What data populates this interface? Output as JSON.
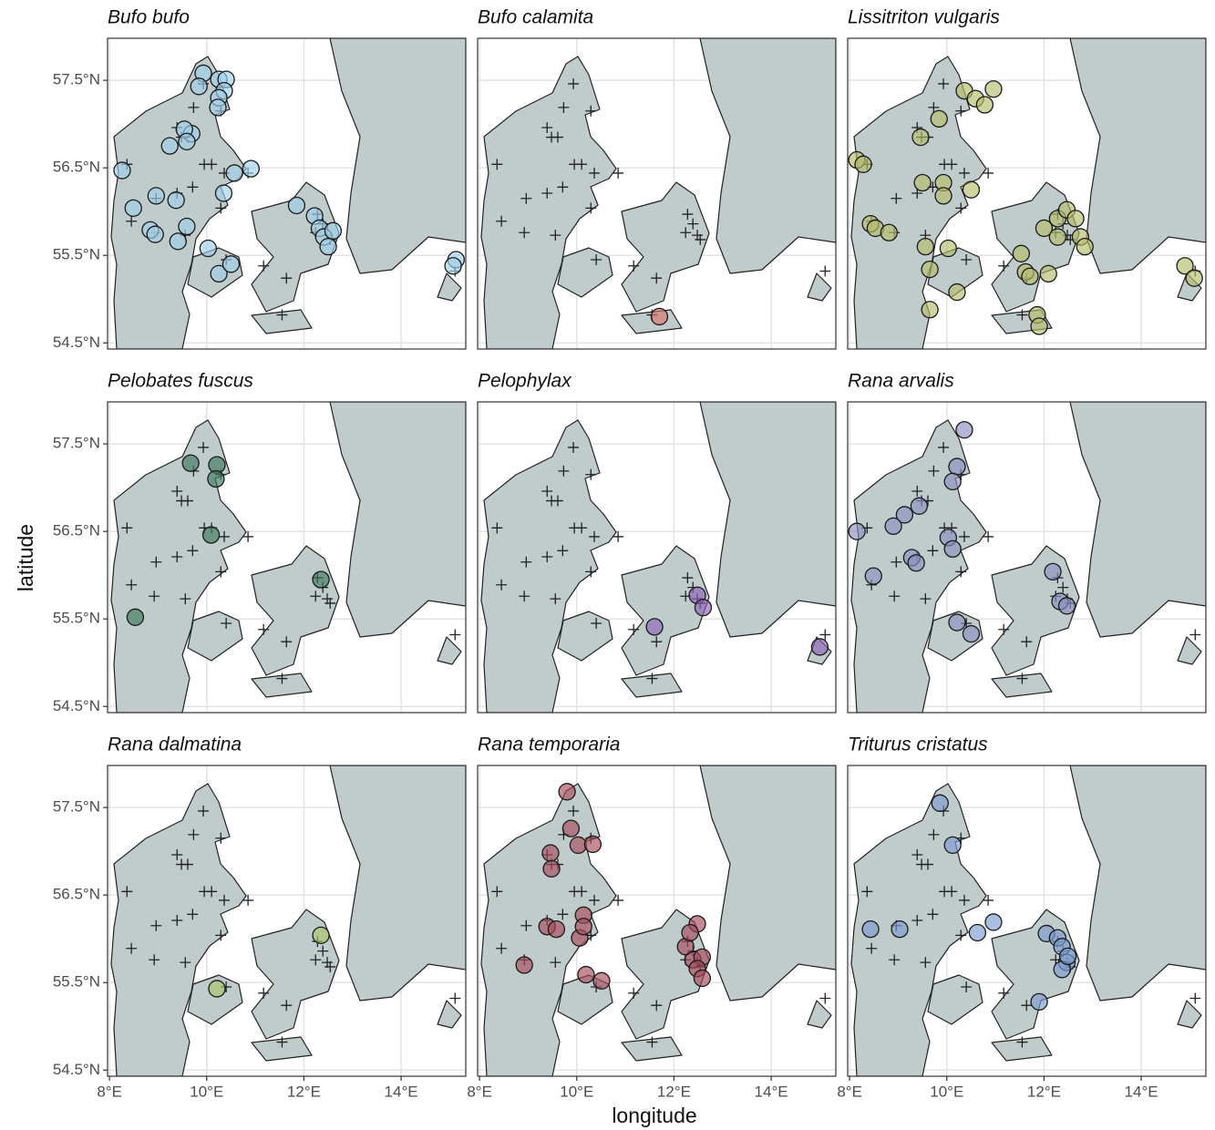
{
  "chart_data": {
    "type": "scatter",
    "xlabel": "longitude",
    "ylabel": "latitude",
    "xlim": [
      7.96,
      15.33
    ],
    "ylim": [
      54.43,
      57.98
    ],
    "xticks": [
      {
        "value": 8,
        "label": "8°E"
      },
      {
        "value": 10,
        "label": "10°E"
      },
      {
        "value": 12,
        "label": "12°E"
      },
      {
        "value": 14,
        "label": "14°E"
      }
    ],
    "yticks": [
      {
        "value": 54.5,
        "label": "54.5°N"
      },
      {
        "value": 55.5,
        "label": "55.5°N"
      },
      {
        "value": 56.5,
        "label": "56.5°N"
      },
      {
        "value": 57.5,
        "label": "57.5°N"
      }
    ],
    "grid": true,
    "sites": {
      "x": [
        9.93,
        10.29,
        9.73,
        9.39,
        9.48,
        9.61,
        8.36,
        8.96,
        9.39,
        9.71,
        10.1,
        10.36,
        10.29,
        10.4,
        10.85,
        11.17,
        11.64,
        11.55,
        12.28,
        12.39,
        12.48,
        12.54,
        12.24,
        8.45,
        8.92,
        9.56,
        15.11,
        9.95
      ],
      "values": [
        57.46,
        57.15,
        57.19,
        56.96,
        56.85,
        56.85,
        56.54,
        56.15,
        56.21,
        56.28,
        56.54,
        56.44,
        56.04,
        55.45,
        56.44,
        55.38,
        55.24,
        54.82,
        55.97,
        55.86,
        55.73,
        55.68,
        55.76,
        55.89,
        55.76,
        55.73,
        55.32,
        56.54
      ]
    },
    "panels": [
      {
        "title": "Bufo bufo",
        "color": "#9fd0ea",
        "x": [
          9.93,
          9.84,
          10.25,
          10.4,
          10.36,
          10.25,
          10.23,
          9.69,
          9.54,
          9.59,
          9.24,
          8.26,
          8.49,
          8.96,
          9.37,
          8.84,
          8.94,
          9.41,
          9.59,
          10.03,
          10.25,
          10.5,
          10.35,
          10.57,
          10.91,
          11.85,
          12.22,
          12.32,
          12.41,
          12.5,
          12.6,
          15.13,
          15.07
        ],
        "values": [
          57.58,
          57.43,
          57.51,
          57.51,
          57.38,
          57.3,
          57.19,
          56.89,
          56.94,
          56.8,
          56.75,
          56.47,
          56.04,
          56.18,
          56.13,
          55.79,
          55.74,
          55.66,
          55.83,
          55.58,
          55.29,
          55.4,
          56.21,
          56.44,
          56.49,
          56.07,
          55.95,
          55.81,
          55.71,
          55.6,
          55.78,
          55.45,
          55.38
        ]
      },
      {
        "title": "Bufo calamita",
        "color": "#d9776f",
        "x": [
          11.7
        ],
        "values": [
          54.8
        ]
      },
      {
        "title": "Lissitriton vulgaris",
        "color": "#b5bd6a",
        "x": [
          8.15,
          8.28,
          10.36,
          10.59,
          10.78,
          10.96,
          9.84,
          9.46,
          9.5,
          9.93,
          9.93,
          10.5,
          8.43,
          8.53,
          8.81,
          9.56,
          10.03,
          9.65,
          10.21,
          9.65,
          11.53,
          11.62,
          11.71,
          11.86,
          11.9,
          12.0,
          12.28,
          12.47,
          12.65,
          12.28,
          12.75,
          12.09,
          14.9,
          15.09,
          12.84
        ],
        "values": [
          56.59,
          56.54,
          57.38,
          57.29,
          57.22,
          57.4,
          57.06,
          56.85,
          56.33,
          56.33,
          56.18,
          56.25,
          55.86,
          55.81,
          55.76,
          55.6,
          55.58,
          55.34,
          55.08,
          54.88,
          55.52,
          55.31,
          55.26,
          54.82,
          54.69,
          55.81,
          55.92,
          56.02,
          55.92,
          55.71,
          55.71,
          55.29,
          55.38,
          55.24,
          55.6
        ]
      },
      {
        "title": "Pelobates fuscus",
        "color": "#3d7a5e",
        "x": [
          9.67,
          10.21,
          10.19,
          10.09,
          8.53,
          12.35
        ],
        "values": [
          57.28,
          57.26,
          57.1,
          56.46,
          55.52,
          55.95
        ]
      },
      {
        "title": "Pelophylax",
        "color": "#8e62b8",
        "x": [
          12.48,
          12.6,
          11.6,
          15.0
        ],
        "values": [
          55.77,
          55.63,
          55.41,
          55.18
        ]
      },
      {
        "title": "Rana arvalis",
        "color": "#8b8fc0",
        "x": [
          10.36,
          10.21,
          10.12,
          9.43,
          9.13,
          8.9,
          8.15,
          8.49,
          9.28,
          9.37,
          10.03,
          10.12,
          10.21,
          10.5,
          12.18,
          12.33,
          12.47
        ],
        "values": [
          57.66,
          57.24,
          57.07,
          56.79,
          56.69,
          56.56,
          56.5,
          55.99,
          56.2,
          56.14,
          56.43,
          56.3,
          55.46,
          55.33,
          56.04,
          55.7,
          55.65
        ]
      },
      {
        "title": "Rana dalmatina",
        "color": "#a9c46a",
        "x": [
          10.21,
          12.35
        ],
        "values": [
          55.43,
          56.04
        ]
      },
      {
        "title": "Rana temporaria",
        "color": "#a64b5b",
        "x": [
          9.8,
          9.88,
          10.03,
          10.33,
          9.46,
          9.48,
          9.39,
          9.58,
          10.06,
          10.14,
          10.14,
          8.92,
          10.19,
          10.51,
          12.48,
          12.24,
          12.39,
          12.58,
          12.48,
          12.58,
          12.33
        ],
        "values": [
          57.68,
          57.26,
          57.07,
          57.08,
          56.98,
          56.8,
          56.14,
          56.11,
          56.01,
          56.27,
          56.14,
          55.7,
          55.59,
          55.52,
          56.17,
          55.91,
          55.76,
          55.79,
          55.66,
          55.55,
          56.07
        ]
      },
      {
        "title": "Triturus cristatus",
        "color": "#7b9bd0",
        "x": [
          9.86,
          10.12,
          10.63,
          10.96,
          8.43,
          9.03,
          12.05,
          12.28,
          12.37,
          12.47,
          12.37,
          12.49,
          11.9
        ],
        "values": [
          57.55,
          57.07,
          56.07,
          56.19,
          56.11,
          56.11,
          56.06,
          56.01,
          55.91,
          55.73,
          55.65,
          55.8,
          55.28
        ]
      }
    ]
  }
}
